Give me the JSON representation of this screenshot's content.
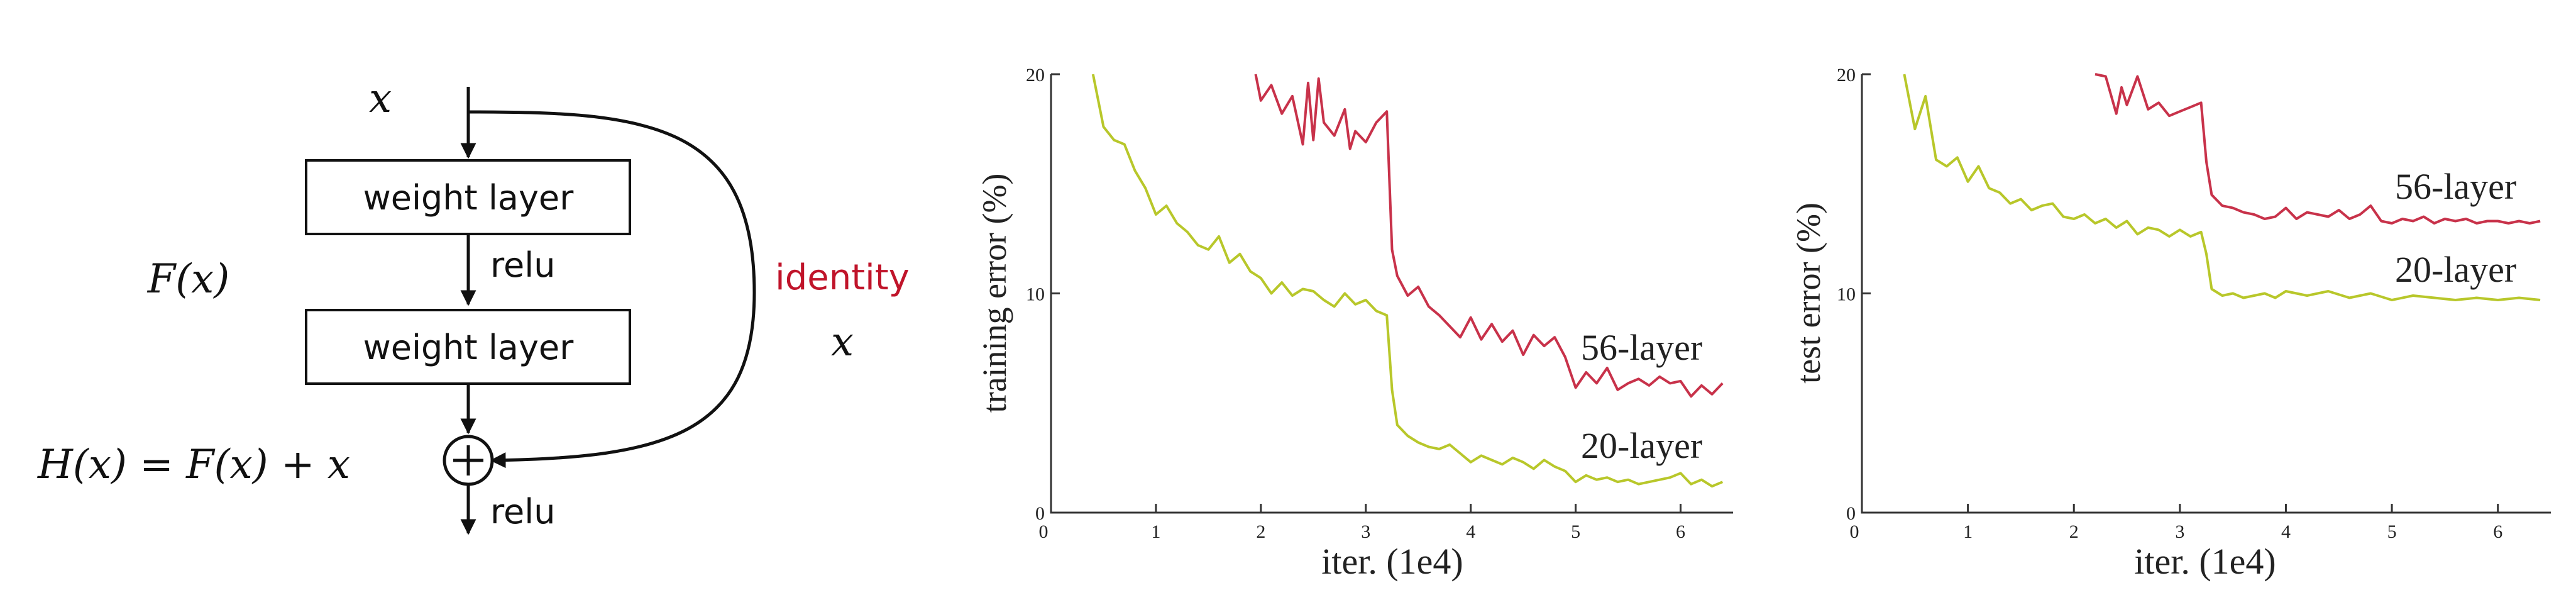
{
  "diagram": {
    "input_label": "x",
    "layer1_label": "weight layer",
    "relu_mid_label": "relu",
    "layer2_label": "weight layer",
    "fx_label": "F(x)",
    "identity_label": "identity",
    "identity_x_label": "x",
    "hx_label": "H(x) = F(x) + x",
    "relu_out_label": "relu",
    "colors": {
      "identity": "#c0142a",
      "stroke": "#111111"
    }
  },
  "chart_data": [
    {
      "type": "line",
      "title": "",
      "xlabel": "iter. (1e4)",
      "ylabel": "training error (%)",
      "xlim": [
        0,
        6.5
      ],
      "ylim": [
        0,
        20
      ],
      "xticks": [
        0,
        1,
        2,
        3,
        4,
        5,
        6
      ],
      "yticks": [
        0,
        10,
        20
      ],
      "grid": false,
      "series": [
        {
          "name": "56-layer",
          "color": "#c8324a",
          "x": [
            1.95,
            2.0,
            2.1,
            2.2,
            2.3,
            2.4,
            2.45,
            2.5,
            2.55,
            2.6,
            2.7,
            2.8,
            2.85,
            2.9,
            3.0,
            3.1,
            3.2,
            3.25,
            3.3,
            3.4,
            3.5,
            3.6,
            3.7,
            3.8,
            3.9,
            4.0,
            4.1,
            4.2,
            4.3,
            4.4,
            4.5,
            4.6,
            4.7,
            4.8,
            4.9,
            5.0,
            5.1,
            5.2,
            5.3,
            5.4,
            5.5,
            5.6,
            5.7,
            5.8,
            5.9,
            6.0,
            6.1,
            6.2,
            6.3,
            6.4
          ],
          "y": [
            20.0,
            18.8,
            19.5,
            18.2,
            19.0,
            16.8,
            19.6,
            17.0,
            19.8,
            17.8,
            17.2,
            18.4,
            16.6,
            17.4,
            16.9,
            17.8,
            18.3,
            12.0,
            10.8,
            9.9,
            10.3,
            9.4,
            9.0,
            8.5,
            8.0,
            8.9,
            7.9,
            8.6,
            7.8,
            8.3,
            7.2,
            8.1,
            7.6,
            8.0,
            7.1,
            5.7,
            6.4,
            5.9,
            6.6,
            5.6,
            5.9,
            6.1,
            5.8,
            6.2,
            5.9,
            6.0,
            5.3,
            5.8,
            5.4,
            5.9
          ]
        },
        {
          "name": "20-layer",
          "color": "#b8c72a",
          "x": [
            0.4,
            0.5,
            0.6,
            0.7,
            0.8,
            0.9,
            1.0,
            1.1,
            1.2,
            1.3,
            1.4,
            1.5,
            1.6,
            1.7,
            1.8,
            1.9,
            2.0,
            2.1,
            2.2,
            2.3,
            2.4,
            2.5,
            2.6,
            2.7,
            2.8,
            2.9,
            3.0,
            3.1,
            3.2,
            3.25,
            3.3,
            3.4,
            3.5,
            3.6,
            3.7,
            3.8,
            3.9,
            4.0,
            4.1,
            4.2,
            4.3,
            4.4,
            4.5,
            4.6,
            4.7,
            4.8,
            4.9,
            5.0,
            5.1,
            5.2,
            5.3,
            5.4,
            5.5,
            5.6,
            5.7,
            5.8,
            5.9,
            6.0,
            6.1,
            6.2,
            6.3,
            6.4
          ],
          "y": [
            20.0,
            17.6,
            17.0,
            16.8,
            15.6,
            14.8,
            13.6,
            14.0,
            13.2,
            12.8,
            12.2,
            12.0,
            12.6,
            11.4,
            11.8,
            11.0,
            10.7,
            10.0,
            10.5,
            9.9,
            10.2,
            10.1,
            9.7,
            9.4,
            10.0,
            9.5,
            9.7,
            9.2,
            9.0,
            5.6,
            4.0,
            3.5,
            3.2,
            3.0,
            2.9,
            3.1,
            2.7,
            2.3,
            2.6,
            2.4,
            2.2,
            2.5,
            2.3,
            2.0,
            2.4,
            2.1,
            1.9,
            1.4,
            1.7,
            1.5,
            1.6,
            1.4,
            1.5,
            1.3,
            1.4,
            1.5,
            1.6,
            1.8,
            1.3,
            1.5,
            1.2,
            1.4
          ]
        }
      ]
    },
    {
      "type": "line",
      "title": "",
      "xlabel": "iter. (1e4)",
      "ylabel": "test error (%)",
      "xlim": [
        0,
        6.5
      ],
      "ylim": [
        0,
        20
      ],
      "xticks": [
        0,
        1,
        2,
        3,
        4,
        5,
        6
      ],
      "yticks": [
        0,
        10,
        20
      ],
      "grid": false,
      "series": [
        {
          "name": "56-layer",
          "color": "#c8324a",
          "x": [
            2.2,
            2.3,
            2.4,
            2.45,
            2.5,
            2.6,
            2.7,
            2.8,
            2.9,
            3.0,
            3.1,
            3.2,
            3.25,
            3.3,
            3.4,
            3.5,
            3.6,
            3.7,
            3.8,
            3.9,
            4.0,
            4.1,
            4.2,
            4.3,
            4.4,
            4.5,
            4.6,
            4.7,
            4.8,
            4.9,
            5.0,
            5.1,
            5.2,
            5.3,
            5.4,
            5.5,
            5.6,
            5.7,
            5.8,
            5.9,
            6.0,
            6.1,
            6.2,
            6.3,
            6.4
          ],
          "y": [
            20.0,
            19.9,
            18.2,
            19.4,
            18.6,
            19.9,
            18.4,
            18.7,
            18.1,
            18.3,
            18.5,
            18.7,
            16.0,
            14.5,
            14.0,
            13.9,
            13.7,
            13.6,
            13.4,
            13.5,
            13.9,
            13.4,
            13.7,
            13.6,
            13.5,
            13.8,
            13.4,
            13.6,
            14.0,
            13.3,
            13.2,
            13.4,
            13.3,
            13.5,
            13.2,
            13.4,
            13.3,
            13.4,
            13.2,
            13.3,
            13.3,
            13.2,
            13.3,
            13.2,
            13.3
          ]
        },
        {
          "name": "20-layer",
          "color": "#b8c72a",
          "x": [
            0.4,
            0.5,
            0.6,
            0.7,
            0.8,
            0.9,
            1.0,
            1.1,
            1.2,
            1.3,
            1.4,
            1.5,
            1.6,
            1.7,
            1.8,
            1.9,
            2.0,
            2.1,
            2.2,
            2.3,
            2.4,
            2.5,
            2.6,
            2.7,
            2.8,
            2.9,
            3.0,
            3.1,
            3.2,
            3.25,
            3.3,
            3.4,
            3.5,
            3.6,
            3.7,
            3.8,
            3.9,
            4.0,
            4.2,
            4.4,
            4.6,
            4.8,
            5.0,
            5.2,
            5.4,
            5.6,
            5.8,
            6.0,
            6.2,
            6.4
          ],
          "y": [
            20.0,
            17.5,
            19.0,
            16.1,
            15.8,
            16.2,
            15.1,
            15.8,
            14.8,
            14.6,
            14.1,
            14.3,
            13.8,
            14.0,
            14.1,
            13.5,
            13.4,
            13.6,
            13.2,
            13.4,
            13.0,
            13.3,
            12.7,
            13.0,
            12.9,
            12.6,
            12.9,
            12.6,
            12.8,
            11.8,
            10.2,
            9.9,
            10.0,
            9.8,
            9.9,
            10.0,
            9.8,
            10.1,
            9.9,
            10.1,
            9.8,
            10.0,
            9.7,
            9.9,
            9.8,
            9.7,
            9.8,
            9.7,
            9.8,
            9.7
          ]
        }
      ]
    }
  ]
}
